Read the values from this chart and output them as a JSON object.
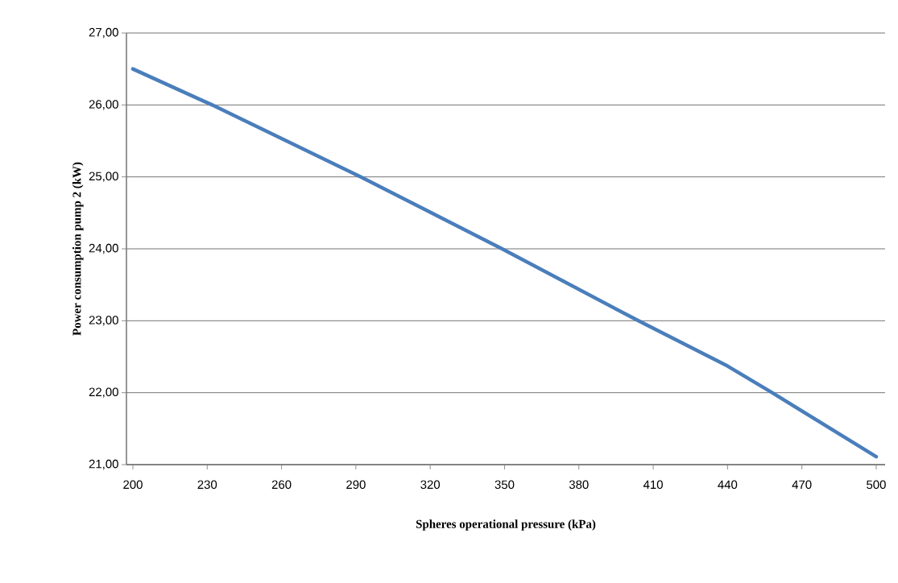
{
  "chart_data": {
    "type": "line",
    "xlabel": "Spheres operational pressure (kPa)",
    "ylabel": "Power consumption pump 2  (kW)",
    "x": [
      200,
      232,
      292,
      349,
      404,
      440,
      458,
      500
    ],
    "series": [
      {
        "color": "#4a7ebb",
        "values": [
          26.5,
          26.0,
          25.0,
          24.0,
          23.0,
          22.37,
          22.0,
          21.11
        ]
      }
    ],
    "xlim": [
      197.4,
      503.6
    ],
    "xticks": [
      200,
      230,
      260,
      290,
      320,
      350,
      380,
      410,
      440,
      470,
      500
    ],
    "ylim": [
      21,
      27
    ],
    "yticks": [
      {
        "value": 21,
        "label": "21,00"
      },
      {
        "value": 22,
        "label": "22,00"
      },
      {
        "value": 23,
        "label": "23,00"
      },
      {
        "value": 24,
        "label": "24,00"
      },
      {
        "value": 25,
        "label": "25,00"
      },
      {
        "value": 26,
        "label": "26,00"
      },
      {
        "value": 27,
        "label": "27,00"
      }
    ],
    "grid": "y",
    "legend": false,
    "marker": "none",
    "line_style": "solid"
  }
}
